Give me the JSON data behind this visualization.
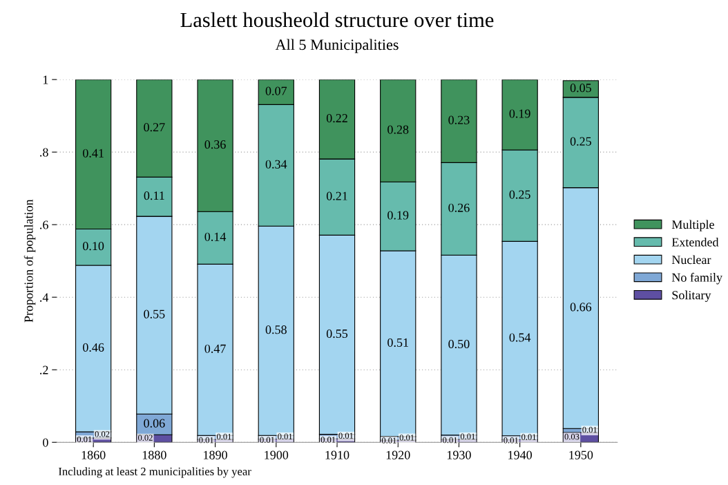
{
  "chart_data": {
    "type": "bar",
    "stacked": true,
    "title": "Laslett housheold structure over time",
    "subtitle": "All 5 Municipalities",
    "ylabel": "Proportion of population",
    "categories": [
      "1860",
      "1880",
      "1890",
      "1900",
      "1910",
      "1920",
      "1930",
      "1940",
      "1950"
    ],
    "series": [
      {
        "name": "Solitary",
        "color": "#5e4fa2",
        "values": [
          0.012,
          0.021,
          0.008,
          0.009,
          0.01,
          0.006,
          0.008,
          0.007,
          0.027
        ],
        "value_labels": [
          "0.01",
          "0.02",
          "0.01",
          "0.01",
          "0.01",
          "0.01",
          "0.01",
          "0.01",
          "0.03"
        ]
      },
      {
        "name": "No family",
        "color": "#7fa8d6",
        "values": [
          0.017,
          0.057,
          0.011,
          0.01,
          0.012,
          0.01,
          0.012,
          0.011,
          0.011
        ],
        "value_labels": [
          "0.02",
          "0.06",
          "0.01",
          "0.01",
          "0.01",
          "0.01",
          "0.01",
          "0.01",
          "0.01"
        ]
      },
      {
        "name": "Nuclear",
        "color": "#a3d5f0",
        "values": [
          0.459,
          0.545,
          0.472,
          0.577,
          0.549,
          0.512,
          0.496,
          0.536,
          0.664
        ],
        "value_labels": [
          "0.46",
          "0.55",
          "0.47",
          "0.58",
          "0.55",
          "0.51",
          "0.50",
          "0.54",
          "0.66"
        ]
      },
      {
        "name": "Extended",
        "color": "#66bbad",
        "values": [
          0.1,
          0.108,
          0.145,
          0.335,
          0.21,
          0.19,
          0.255,
          0.252,
          0.249
        ],
        "value_labels": [
          "0.10",
          "0.11",
          "0.14",
          "0.34",
          "0.21",
          "0.19",
          "0.26",
          "0.25",
          "0.25"
        ]
      },
      {
        "name": "Multiple",
        "color": "#40935d",
        "values": [
          0.412,
          0.269,
          0.364,
          0.069,
          0.219,
          0.282,
          0.229,
          0.194,
          0.046
        ],
        "value_labels": [
          "0.41",
          "0.27",
          "0.36",
          "0.07",
          "0.22",
          "0.28",
          "0.23",
          "0.19",
          "0.05"
        ]
      }
    ],
    "ylim": [
      0,
      1
    ],
    "yticks": [
      {
        "value": 0,
        "label": "0"
      },
      {
        "value": 0.2,
        "label": ".2"
      },
      {
        "value": 0.4,
        "label": ".4"
      },
      {
        "value": 0.6,
        "label": ".6"
      },
      {
        "value": 0.8,
        "label": ".8"
      },
      {
        "value": 1,
        "label": "1"
      }
    ],
    "grid": "y",
    "legend": "right",
    "annotations": [
      "Including at least 2 municipalities by year"
    ]
  }
}
